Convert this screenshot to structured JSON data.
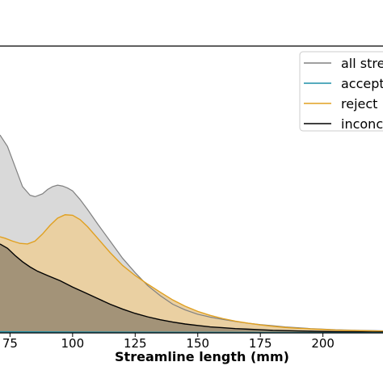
{
  "chart_data": {
    "type": "area",
    "title": "",
    "xlabel": "Streamline length (mm)",
    "ylabel": "",
    "xlim": [
      71,
      224
    ],
    "ylim": [
      0,
      1
    ],
    "xticks": [
      {
        "value": 75,
        "label": "75"
      },
      {
        "value": 100,
        "label": "100"
      },
      {
        "value": 125,
        "label": "125"
      },
      {
        "value": 150,
        "label": "150"
      },
      {
        "value": 175,
        "label": "175"
      },
      {
        "value": 200,
        "label": "200"
      }
    ],
    "legend_position": "top-right",
    "series": [
      {
        "name": "all streamlines",
        "legend_label": "all stre",
        "line_color": "#808080",
        "fill_color": "#d9d9d9",
        "x": [
          71,
          74,
          77,
          80,
          83,
          85,
          88,
          90,
          92,
          94,
          96,
          98,
          100,
          103,
          106,
          110,
          115,
          120,
          125,
          130,
          135,
          140,
          145,
          150,
          155,
          160,
          165,
          170,
          175,
          180,
          185,
          190,
          195,
          200,
          205,
          210,
          215,
          220,
          224
        ],
        "y": [
          0.69,
          0.65,
          0.58,
          0.51,
          0.48,
          0.475,
          0.485,
          0.5,
          0.51,
          0.515,
          0.512,
          0.505,
          0.495,
          0.465,
          0.43,
          0.38,
          0.32,
          0.26,
          0.21,
          0.165,
          0.13,
          0.1,
          0.08,
          0.065,
          0.055,
          0.047,
          0.04,
          0.034,
          0.029,
          0.025,
          0.021,
          0.018,
          0.015,
          0.013,
          0.011,
          0.01,
          0.009,
          0.008,
          0.007
        ]
      },
      {
        "name": "accepted",
        "legend_label": "accept",
        "line_color": "#1f8fa8",
        "fill_color": "#1f8fa8",
        "x": [
          71,
          100,
          150,
          200,
          224
        ],
        "y": [
          0.004,
          0.003,
          0.002,
          0.001,
          0.001
        ]
      },
      {
        "name": "rejected",
        "legend_label": "reject",
        "line_color": "#e0a020",
        "fill_color": "#ead0a2",
        "x": [
          71,
          73,
          76,
          79,
          82,
          85,
          88,
          91,
          94,
          97,
          100,
          103,
          106,
          110,
          115,
          120,
          125,
          130,
          135,
          140,
          145,
          150,
          155,
          160,
          165,
          170,
          175,
          180,
          185,
          190,
          195,
          200,
          205,
          210,
          215,
          220,
          224
        ],
        "y": [
          0.335,
          0.33,
          0.32,
          0.312,
          0.31,
          0.32,
          0.345,
          0.375,
          0.4,
          0.412,
          0.41,
          0.395,
          0.37,
          0.33,
          0.28,
          0.235,
          0.2,
          0.17,
          0.142,
          0.115,
          0.093,
          0.075,
          0.061,
          0.05,
          0.041,
          0.034,
          0.028,
          0.023,
          0.019,
          0.016,
          0.014,
          0.012,
          0.01,
          0.009,
          0.008,
          0.007,
          0.006
        ]
      },
      {
        "name": "inconclusive",
        "legend_label": "inconc",
        "line_color": "#000000",
        "fill_color": "#a39378",
        "x": [
          71,
          74,
          77,
          80,
          83,
          86,
          90,
          95,
          100,
          105,
          110,
          115,
          120,
          125,
          130,
          135,
          140,
          145,
          150,
          155,
          160,
          165,
          170,
          175,
          180,
          185,
          190,
          195,
          200,
          205,
          210,
          215,
          220,
          224
        ],
        "y": [
          0.31,
          0.295,
          0.27,
          0.248,
          0.23,
          0.215,
          0.2,
          0.182,
          0.16,
          0.14,
          0.12,
          0.1,
          0.083,
          0.068,
          0.056,
          0.046,
          0.038,
          0.031,
          0.026,
          0.021,
          0.018,
          0.015,
          0.013,
          0.011,
          0.009,
          0.008,
          0.007,
          0.006,
          0.005,
          0.0045,
          0.004,
          0.0035,
          0.003,
          0.003
        ]
      }
    ]
  }
}
